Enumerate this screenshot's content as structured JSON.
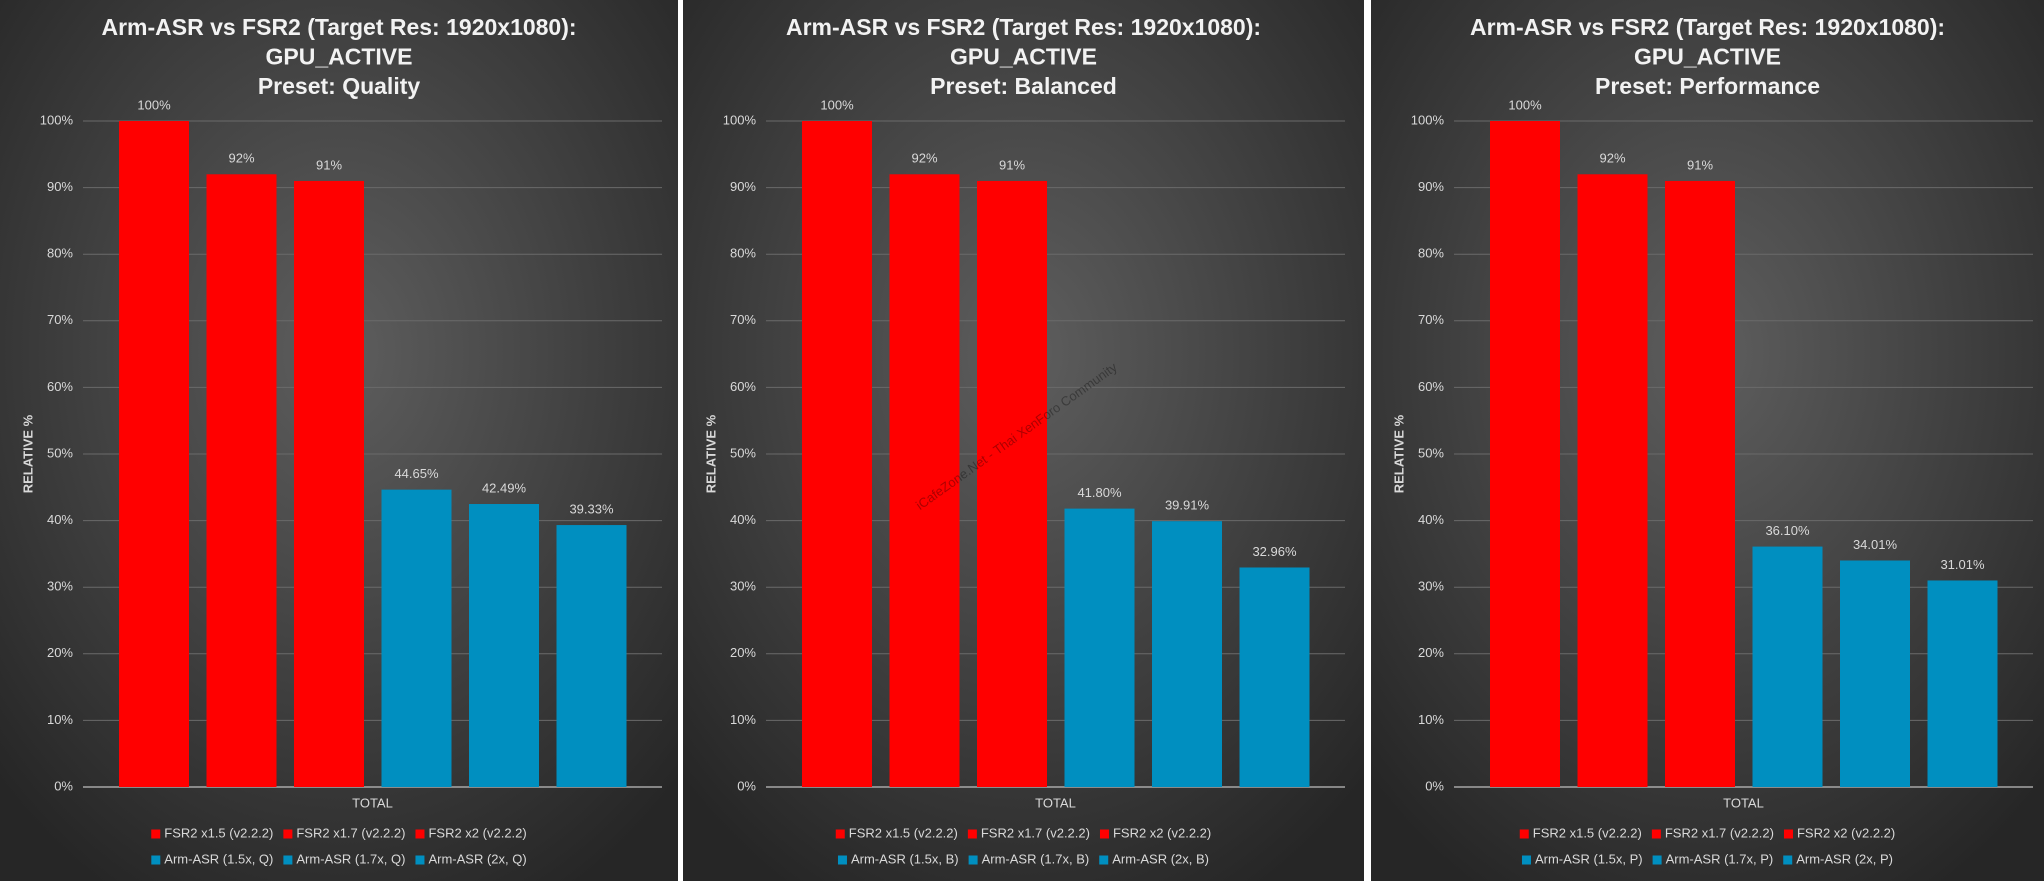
{
  "chart_data": [
    {
      "type": "bar",
      "title": [
        "Arm-ASR vs FSR2 (Target Res: 1920x1080):",
        "GPU_ACTIVE",
        "Preset: Quality"
      ],
      "ylabel": "RELATIVE %",
      "categories": [
        "TOTAL"
      ],
      "ylim": [
        0,
        100
      ],
      "yticks": [
        {
          "value": 0,
          "label": "0%"
        },
        {
          "value": 10,
          "label": "10%"
        },
        {
          "value": 20,
          "label": "20%"
        },
        {
          "value": 30,
          "label": "30%"
        },
        {
          "value": 40,
          "label": "40%"
        },
        {
          "value": 50,
          "label": "50%"
        },
        {
          "value": 60,
          "label": "60%"
        },
        {
          "value": 70,
          "label": "70%"
        },
        {
          "value": 80,
          "label": "80%"
        },
        {
          "value": 90,
          "label": "90%"
        },
        {
          "value": 100,
          "label": "100%"
        }
      ],
      "grid": true,
      "series": [
        {
          "name": "FSR2 x1.5 (v2.2.2)",
          "color": "#ff0000",
          "values": [
            100
          ],
          "value_labels": [
            "100%"
          ]
        },
        {
          "name": "FSR2 x1.7 (v2.2.2)",
          "color": "#ff0000",
          "values": [
            92
          ],
          "value_labels": [
            "92%"
          ]
        },
        {
          "name": "FSR2 x2 (v2.2.2)",
          "color": "#ff0000",
          "values": [
            91
          ],
          "value_labels": [
            "91%"
          ]
        },
        {
          "name": "Arm-ASR (1.5x, Q)",
          "color": "#008fc0",
          "values": [
            44.65
          ],
          "value_labels": [
            "44.65%"
          ]
        },
        {
          "name": "Arm-ASR (1.7x, Q)",
          "color": "#008fc0",
          "values": [
            42.49
          ],
          "value_labels": [
            "42.49%"
          ]
        },
        {
          "name": "Arm-ASR (2x, Q)",
          "color": "#008fc0",
          "values": [
            39.33
          ],
          "value_labels": [
            "39.33%"
          ]
        }
      ]
    },
    {
      "type": "bar",
      "title": [
        "Arm-ASR vs FSR2 (Target Res: 1920x1080):",
        "GPU_ACTIVE",
        "Preset: Balanced"
      ],
      "ylabel": "RELATIVE %",
      "categories": [
        "TOTAL"
      ],
      "ylim": [
        0,
        100
      ],
      "yticks": [
        {
          "value": 0,
          "label": "0%"
        },
        {
          "value": 10,
          "label": "10%"
        },
        {
          "value": 20,
          "label": "20%"
        },
        {
          "value": 30,
          "label": "30%"
        },
        {
          "value": 40,
          "label": "40%"
        },
        {
          "value": 50,
          "label": "50%"
        },
        {
          "value": 60,
          "label": "60%"
        },
        {
          "value": 70,
          "label": "70%"
        },
        {
          "value": 80,
          "label": "80%"
        },
        {
          "value": 90,
          "label": "90%"
        },
        {
          "value": 100,
          "label": "100%"
        }
      ],
      "grid": true,
      "series": [
        {
          "name": "FSR2 x1.5 (v2.2.2)",
          "color": "#ff0000",
          "values": [
            100
          ],
          "value_labels": [
            "100%"
          ]
        },
        {
          "name": "FSR2 x1.7 (v2.2.2)",
          "color": "#ff0000",
          "values": [
            92
          ],
          "value_labels": [
            "92%"
          ]
        },
        {
          "name": "FSR2 x2 (v2.2.2)",
          "color": "#ff0000",
          "values": [
            91
          ],
          "value_labels": [
            "91%"
          ]
        },
        {
          "name": "Arm-ASR (1.5x, B)",
          "color": "#008fc0",
          "values": [
            41.8
          ],
          "value_labels": [
            "41.80%"
          ]
        },
        {
          "name": "Arm-ASR (1.7x, B)",
          "color": "#008fc0",
          "values": [
            39.91
          ],
          "value_labels": [
            "39.91%"
          ]
        },
        {
          "name": "Arm-ASR (2x, B)",
          "color": "#008fc0",
          "values": [
            32.96
          ],
          "value_labels": [
            "32.96%"
          ]
        }
      ]
    },
    {
      "type": "bar",
      "title": [
        "Arm-ASR vs FSR2 (Target Res: 1920x1080):",
        "GPU_ACTIVE",
        "Preset: Performance"
      ],
      "ylabel": "RELATIVE %",
      "categories": [
        "TOTAL"
      ],
      "ylim": [
        0,
        100
      ],
      "yticks": [
        {
          "value": 0,
          "label": "0%"
        },
        {
          "value": 10,
          "label": "10%"
        },
        {
          "value": 20,
          "label": "20%"
        },
        {
          "value": 30,
          "label": "30%"
        },
        {
          "value": 40,
          "label": "40%"
        },
        {
          "value": 50,
          "label": "50%"
        },
        {
          "value": 60,
          "label": "60%"
        },
        {
          "value": 70,
          "label": "70%"
        },
        {
          "value": 80,
          "label": "80%"
        },
        {
          "value": 90,
          "label": "90%"
        },
        {
          "value": 100,
          "label": "100%"
        }
      ],
      "grid": true,
      "series": [
        {
          "name": "FSR2 x1.5 (v2.2.2)",
          "color": "#ff0000",
          "values": [
            100
          ],
          "value_labels": [
            "100%"
          ]
        },
        {
          "name": "FSR2 x1.7 (v2.2.2)",
          "color": "#ff0000",
          "values": [
            92
          ],
          "value_labels": [
            "92%"
          ]
        },
        {
          "name": "FSR2 x2 (v2.2.2)",
          "color": "#ff0000",
          "values": [
            91
          ],
          "value_labels": [
            "91%"
          ]
        },
        {
          "name": "Arm-ASR (1.5x, P)",
          "color": "#008fc0",
          "values": [
            36.1
          ],
          "value_labels": [
            "36.10%"
          ]
        },
        {
          "name": "Arm-ASR (1.7x, P)",
          "color": "#008fc0",
          "values": [
            34.01
          ],
          "value_labels": [
            "34.01%"
          ]
        },
        {
          "name": "Arm-ASR (2x, P)",
          "color": "#008fc0",
          "values": [
            31.01
          ],
          "value_labels": [
            "31.01%"
          ]
        }
      ]
    }
  ],
  "watermark": "iCafeZone.Net - Thai XenForo Community"
}
